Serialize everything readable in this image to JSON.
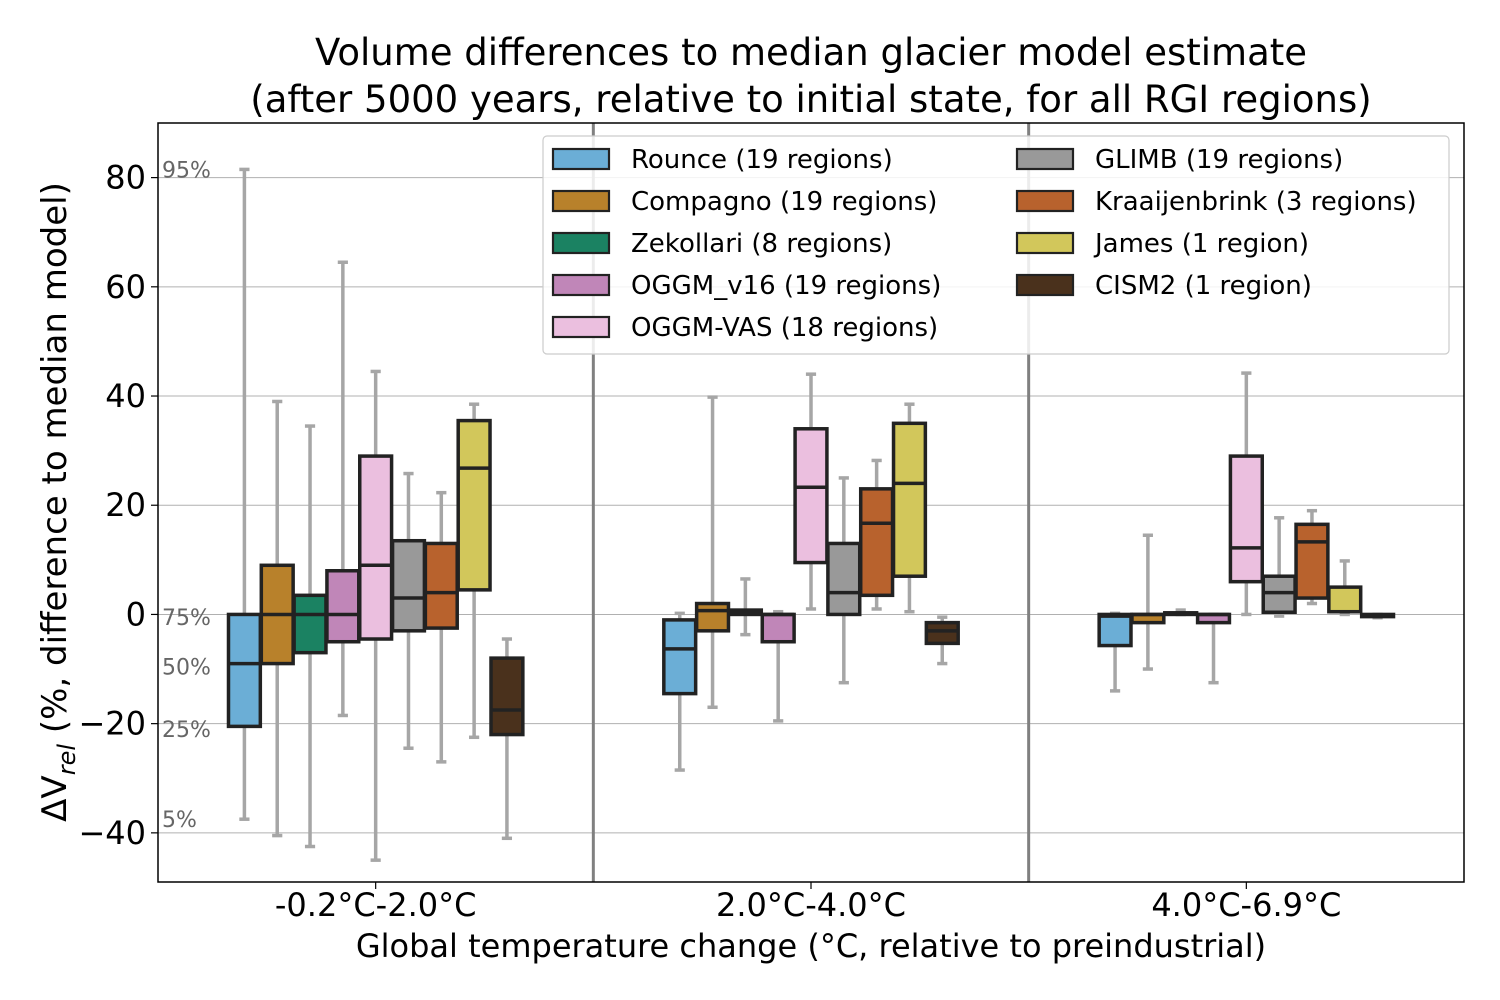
{
  "chart_data": {
    "type": "box",
    "title": [
      "Volume differences to median glacier model estimate",
      "(after 5000 years, relative to initial state, for all RGI regions)"
    ],
    "xlabel": "Global temperature change (°C, relative to preindustrial)",
    "ylabel": "ΔV",
    "ylabel_sub": "rel",
    "ylabel_rest": " (%, difference to median model)",
    "ylim": [
      -49,
      90
    ],
    "yticks": [
      80,
      60,
      40,
      20,
      0,
      -20,
      -40
    ],
    "ytick_labels": [
      "80",
      "60",
      "40",
      "20",
      "0",
      "−20",
      "−40"
    ],
    "grid": true,
    "legend_placement": "upper right, two columns",
    "percentile_annotations": [
      {
        "label": "95%",
        "y": 81.5
      },
      {
        "label": "75%",
        "y": -0.5
      },
      {
        "label": "50%",
        "y": -9.5
      },
      {
        "label": "25%",
        "y": -21
      },
      {
        "label": "5%",
        "y": -37.5
      }
    ],
    "categories": [
      "-0.2°C-2.0°C",
      "2.0°C-4.0°C",
      "4.0°C-6.9°C"
    ],
    "series": [
      {
        "name": "Rounce (19 regions)",
        "color": "#6baed6",
        "boxes": [
          [
            -37.5,
            -20.5,
            -9,
            0,
            81.5
          ],
          [
            -28.5,
            -14.5,
            -6.3,
            -1,
            0.2
          ],
          [
            -14,
            -5.7,
            -0.3,
            0,
            0.2
          ]
        ]
      },
      {
        "name": "Compagno (19 regions)",
        "color": "#b8812b",
        "boxes": [
          [
            -40.5,
            -9,
            0,
            9,
            39
          ],
          [
            -17,
            -3,
            0.7,
            2,
            39.8
          ],
          [
            -10,
            -1.5,
            0,
            0,
            14.5
          ]
        ]
      },
      {
        "name": "Zekollari (8 regions)",
        "color": "#1b8262",
        "boxes": [
          [
            -42.5,
            -7,
            0,
            3.5,
            34.5
          ],
          [
            -3.7,
            0,
            0.3,
            0.8,
            6.5
          ],
          [
            0,
            0,
            0.1,
            0.3,
            0.8
          ]
        ]
      },
      {
        "name": "OGGM_v16 (19 regions)",
        "color": "#c086b8",
        "boxes": [
          [
            -18.5,
            -5,
            0,
            8,
            64.5
          ],
          [
            -19.5,
            -5,
            0,
            0,
            0.5
          ],
          [
            -12.5,
            -1.5,
            0,
            0,
            0
          ]
        ]
      },
      {
        "name": "OGGM-VAS (18 regions)",
        "color": "#ebbfdf",
        "boxes": [
          [
            -45,
            -4.5,
            9,
            29,
            44.5
          ],
          [
            1,
            9.5,
            23.3,
            34,
            44
          ],
          [
            0,
            6,
            12.2,
            29,
            44.2
          ]
        ]
      },
      {
        "name": "GLIMB (19 regions)",
        "color": "#999999",
        "boxes": [
          [
            -24.5,
            -3,
            3,
            13.5,
            25.8
          ],
          [
            -12.5,
            0,
            4,
            13,
            25
          ],
          [
            -0.3,
            0.4,
            4,
            7,
            17.7
          ]
        ]
      },
      {
        "name": "Kraaijenbrink (3 regions)",
        "color": "#b8622d",
        "boxes": [
          [
            -27,
            -2.5,
            4,
            13,
            22.3
          ],
          [
            1,
            3.5,
            16.7,
            23,
            28.2
          ],
          [
            2,
            3,
            13.3,
            16.5,
            19
          ]
        ]
      },
      {
        "name": "James (1 region)",
        "color": "#d2c75b",
        "boxes": [
          [
            -22.5,
            4.5,
            26.8,
            35.5,
            38.5
          ],
          [
            0.5,
            7,
            24,
            35,
            38.5
          ],
          [
            0,
            0.5,
            0.5,
            5,
            9.8
          ]
        ]
      },
      {
        "name": "CISM2 (1 region)",
        "color": "#4a311c",
        "boxes": [
          [
            -41,
            -22,
            -17.5,
            -8,
            -4.5
          ],
          [
            -9,
            -5.3,
            -3,
            -1.5,
            -0.5
          ],
          [
            -0.6,
            -0.4,
            -0.3,
            0,
            0
          ]
        ]
      }
    ],
    "whisker_color": "#a6a6a6",
    "box_edge_color": "#222222"
  }
}
